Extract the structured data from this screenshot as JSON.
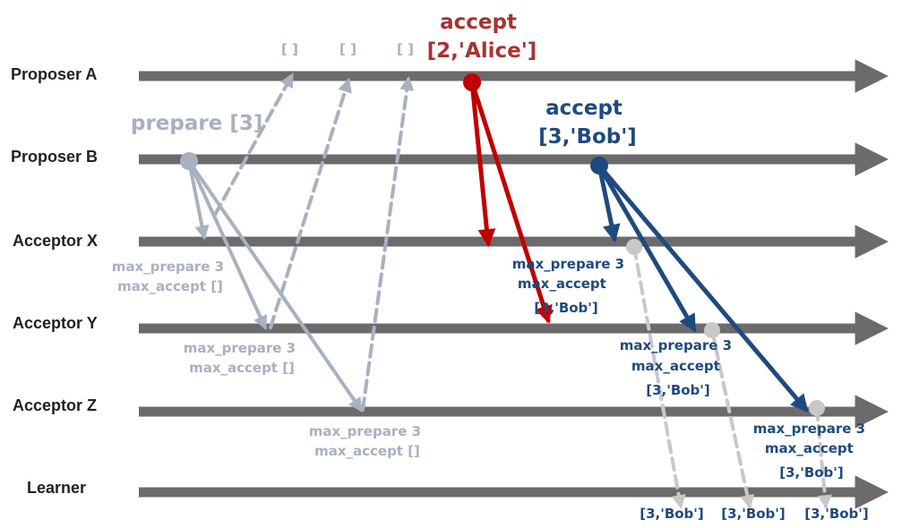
{
  "lanes": {
    "proposer_a": "Proposer A",
    "proposer_b": "Proposer B",
    "acceptor_x": "Acceptor X",
    "acceptor_y": "Acceptor Y",
    "acceptor_z": "Acceptor Z",
    "learner": "Learner"
  },
  "labels": {
    "prepare": "prepare [3]",
    "promise_reply": "[ ]",
    "accept_a_line1": "accept",
    "accept_a_line2": "[2,'Alice']",
    "accept_b_line1": "accept",
    "accept_b_line2": "[3,'Bob']"
  },
  "acceptor_states": {
    "after_prepare": {
      "line1": "max_prepare 3",
      "line2": "max_accept []"
    },
    "after_accept": {
      "line1": "max_prepare 3",
      "line2": "max_accept",
      "line3": "[3,'Bob']"
    }
  },
  "learner_values": [
    "[3,'Bob']",
    "[3,'Bob']",
    "[3,'Bob']"
  ],
  "colors": {
    "timeline": "#6b6b6b",
    "prepare_gray": "#a9b0bf",
    "alice_red": "#c00000",
    "alice_text": "#a83232",
    "bob_blue": "#1f4a7e",
    "learn_gray": "#c8c8c8",
    "label": "#222222"
  }
}
